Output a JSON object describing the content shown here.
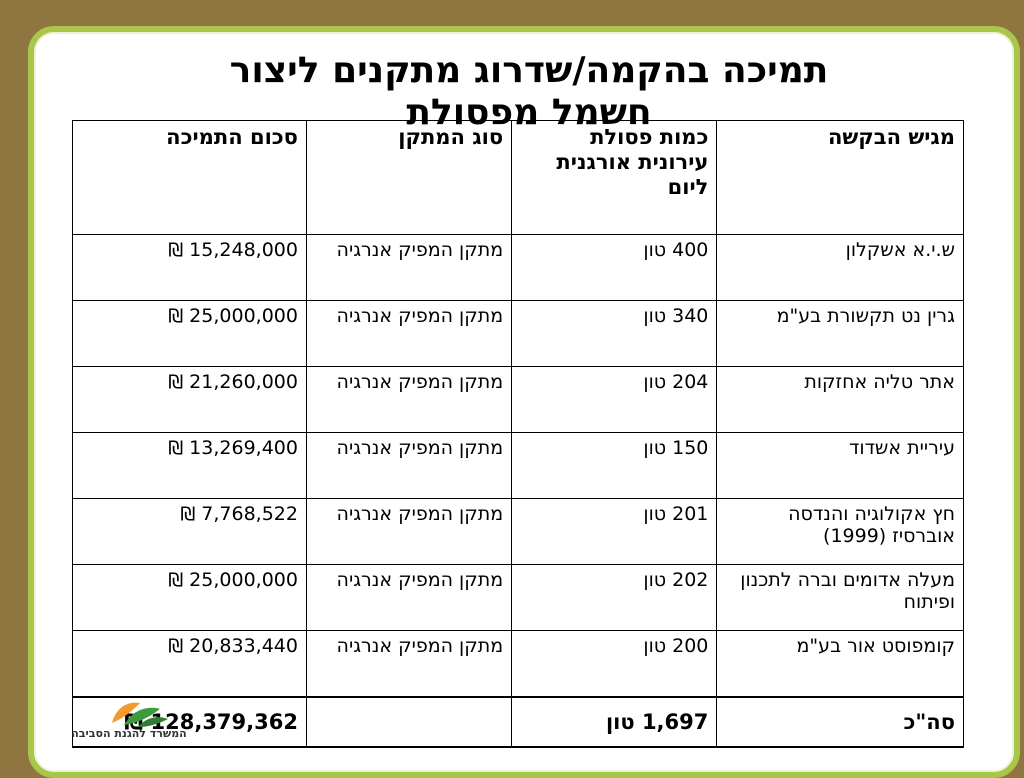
{
  "slide": {
    "title_line1": "תמיכה בהקמה/שדרוג מתקנים ליצור",
    "title_line2": "חשמל מפסולת"
  },
  "table": {
    "headers": [
      "מגיש הבקשה",
      "כמות פסולת עירונית אורגנית ליום",
      "סוג המתקן",
      "סכום התמיכה"
    ],
    "rows": [
      {
        "applicant": "ש.י.א אשקלון",
        "amount": "400 טון",
        "type": "מתקן המפיק אנרגיה",
        "support": "15,248,000 ₪"
      },
      {
        "applicant": "גרין נט תקשורת בע\"מ",
        "amount": "340 טון",
        "type": "מתקן המפיק אנרגיה",
        "support": "25,000,000 ₪"
      },
      {
        "applicant": "אתר טליה אחזקות",
        "amount": "204 טון",
        "type": "מתקן המפיק אנרגיה",
        "support": "21,260,000 ₪"
      },
      {
        "applicant": "עיריית אשדוד",
        "amount": "150 טון",
        "type": "מתקן המפיק אנרגיה",
        "support": "13,269,400 ₪"
      },
      {
        "applicant": "חץ אקולוגיה והנדסה אוברסיז (1999)",
        "amount": "201 טון",
        "type": "מתקן המפיק אנרגיה",
        "support": "7,768,522 ₪"
      },
      {
        "applicant": "מעלה אדומים וברה לתכנון ופיתוח",
        "amount": "202 טון",
        "type": "מתקן המפיק אנרגיה",
        "support": "25,000,000 ₪"
      },
      {
        "applicant": "קומפוסט אור בע\"מ",
        "amount": "200 טון",
        "type": "מתקן המפיק אנרגיה",
        "support": "20,833,440 ₪"
      }
    ],
    "total": {
      "label": "סה\"כ",
      "amount": "1,697 טון",
      "type": "",
      "support": "128,379,362 ₪"
    }
  },
  "logo": {
    "text": "המשרד להגנת הסביבה"
  },
  "colors": {
    "frame_outer": "#8f7640",
    "frame_inner": "#a9c64a",
    "logo_orange": "#f29a2e",
    "logo_green": "#3d9a3d"
  }
}
